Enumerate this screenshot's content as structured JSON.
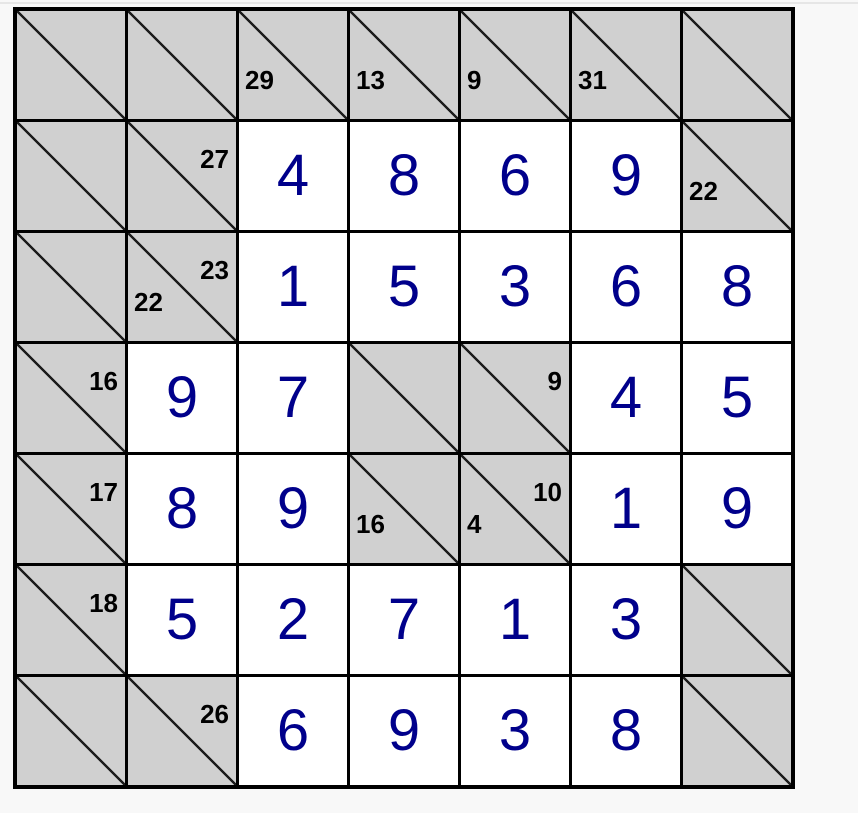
{
  "page": {
    "background": "#f8f8f8",
    "description": "Kakuro puzzle board, 7x7, solved"
  },
  "puzzle": {
    "type": "kakuro",
    "size": {
      "rows": 7,
      "cols": 7
    },
    "colors": {
      "block_bg": "#d0d0d0",
      "entry_bg": "#ffffff",
      "grid_line": "#000000",
      "diagonal_line": "#1c1c1c",
      "digit": "#00008B",
      "clue": "#000000"
    },
    "rows": [
      [
        {
          "type": "block"
        },
        {
          "type": "block"
        },
        {
          "type": "block",
          "down": "29"
        },
        {
          "type": "block",
          "down": "13"
        },
        {
          "type": "block",
          "down": "9"
        },
        {
          "type": "block",
          "down": "31"
        },
        {
          "type": "block"
        }
      ],
      [
        {
          "type": "block"
        },
        {
          "type": "block",
          "across": "27"
        },
        {
          "type": "entry",
          "value": "4"
        },
        {
          "type": "entry",
          "value": "8"
        },
        {
          "type": "entry",
          "value": "6"
        },
        {
          "type": "entry",
          "value": "9"
        },
        {
          "type": "block",
          "down": "22"
        }
      ],
      [
        {
          "type": "block"
        },
        {
          "type": "block",
          "across": "23",
          "down": "22"
        },
        {
          "type": "entry",
          "value": "1"
        },
        {
          "type": "entry",
          "value": "5"
        },
        {
          "type": "entry",
          "value": "3"
        },
        {
          "type": "entry",
          "value": "6"
        },
        {
          "type": "entry",
          "value": "8"
        }
      ],
      [
        {
          "type": "block",
          "across": "16"
        },
        {
          "type": "entry",
          "value": "9"
        },
        {
          "type": "entry",
          "value": "7"
        },
        {
          "type": "block"
        },
        {
          "type": "block",
          "across": "9"
        },
        {
          "type": "entry",
          "value": "4"
        },
        {
          "type": "entry",
          "value": "5"
        }
      ],
      [
        {
          "type": "block",
          "across": "17"
        },
        {
          "type": "entry",
          "value": "8"
        },
        {
          "type": "entry",
          "value": "9"
        },
        {
          "type": "block",
          "down": "16"
        },
        {
          "type": "block",
          "across": "10",
          "down": "4"
        },
        {
          "type": "entry",
          "value": "1"
        },
        {
          "type": "entry",
          "value": "9"
        }
      ],
      [
        {
          "type": "block",
          "across": "18"
        },
        {
          "type": "entry",
          "value": "5"
        },
        {
          "type": "entry",
          "value": "2"
        },
        {
          "type": "entry",
          "value": "7"
        },
        {
          "type": "entry",
          "value": "1"
        },
        {
          "type": "entry",
          "value": "3"
        },
        {
          "type": "block"
        }
      ],
      [
        {
          "type": "block"
        },
        {
          "type": "block",
          "across": "26"
        },
        {
          "type": "entry",
          "value": "6"
        },
        {
          "type": "entry",
          "value": "9"
        },
        {
          "type": "entry",
          "value": "3"
        },
        {
          "type": "entry",
          "value": "8"
        },
        {
          "type": "block"
        }
      ]
    ]
  }
}
